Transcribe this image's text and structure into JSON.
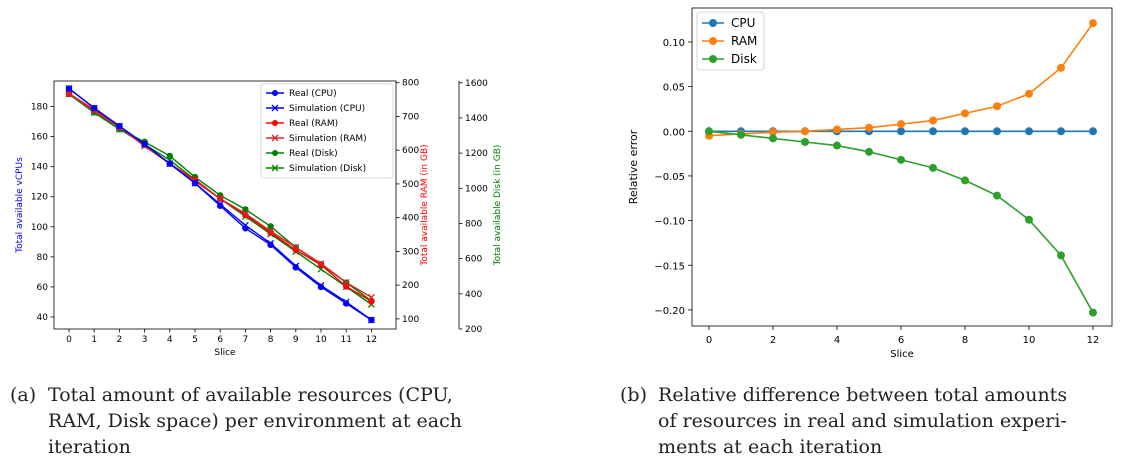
{
  "chart_data": [
    {
      "type": "line",
      "xlabel": "Slice",
      "ylabels": [
        "Total available vCPUs",
        "Total available RAM (in GB)",
        "Total available Disk (in GB)"
      ],
      "x": [
        0,
        1,
        2,
        3,
        4,
        5,
        6,
        7,
        8,
        9,
        10,
        11,
        12
      ],
      "y_left_ticks": [
        40,
        60,
        80,
        100,
        120,
        140,
        160,
        180
      ],
      "y_ram_ticks": [
        100,
        200,
        300,
        400,
        500,
        600,
        700,
        800
      ],
      "y_disk_ticks": [
        200,
        400,
        600,
        800,
        1000,
        1200,
        1400,
        1600
      ],
      "ylim_left": [
        32,
        197
      ],
      "ylim_ram": [
        70,
        805
      ],
      "ylim_disk": [
        200,
        1610
      ],
      "legend_position": "upper right",
      "series": [
        {
          "name": "Real (CPU)",
          "axis": "cpu",
          "color": "#0000ff",
          "marker": "o",
          "values": [
            192,
            179,
            167,
            155,
            142,
            129,
            114,
            99,
            88,
            73,
            60,
            49,
            38
          ]
        },
        {
          "name": "Simulation (CPU)",
          "axis": "cpu",
          "color": "#0000ff",
          "marker": "x",
          "values": [
            192,
            179,
            167,
            155,
            142,
            129,
            115,
            101,
            89,
            74,
            61,
            50,
            38
          ]
        },
        {
          "name": "Real (RAM)",
          "axis": "ram",
          "color": "#ff0000",
          "marker": "o",
          "values": [
            768,
            720,
            668,
            616,
            560,
            512,
            456,
            408,
            356,
            304,
            260,
            196,
            152
          ]
        },
        {
          "name": "Simulation (RAM)",
          "axis": "ram",
          "color": "#d62728",
          "marker": "x",
          "values": [
            768,
            716,
            668,
            612,
            560,
            508,
            456,
            412,
            360,
            312,
            264,
            208,
            164
          ]
        },
        {
          "name": "Real (Disk)",
          "axis": "disk",
          "color": "#008000",
          "marker": "o",
          "values": [
            1536,
            1432,
            1336,
            1264,
            1184,
            1064,
            960,
            880,
            784,
            664,
            568,
            464,
            360
          ]
        },
        {
          "name": "Simulation (Disk)",
          "axis": "disk",
          "color": "#008000",
          "marker": "x",
          "values": [
            1536,
            1430,
            1336,
            1250,
            1160,
            1050,
            940,
            840,
            740,
            640,
            540,
            440,
            340
          ]
        }
      ]
    },
    {
      "type": "line",
      "xlabel": "Slice",
      "ylabel": "Relative error",
      "x": [
        0,
        1,
        2,
        3,
        4,
        5,
        6,
        7,
        8,
        9,
        10,
        11,
        12
      ],
      "x_ticks": [
        0,
        2,
        4,
        6,
        8,
        10,
        12
      ],
      "y_ticks": [
        -0.2,
        -0.15,
        -0.1,
        -0.05,
        0.0,
        0.05,
        0.1
      ],
      "y_tick_labels": [
        "−0.20",
        "−0.15",
        "−0.10",
        "−0.05",
        "0.00",
        "0.05",
        "0.10"
      ],
      "ylim": [
        -0.218,
        0.138
      ],
      "legend_position": "upper left",
      "series": [
        {
          "name": "CPU",
          "color": "#1f77b4",
          "values": [
            0,
            0,
            0,
            0,
            0,
            0,
            0,
            0,
            0,
            0,
            0,
            0,
            0
          ]
        },
        {
          "name": "RAM",
          "color": "#ff7f0e",
          "values": [
            -0.005,
            -0.003,
            -0.001,
            0.0,
            0.002,
            0.004,
            0.008,
            0.012,
            0.02,
            0.028,
            0.042,
            0.071,
            0.121
          ]
        },
        {
          "name": "Disk",
          "color": "#2ca02c",
          "values": [
            0.0,
            -0.004,
            -0.008,
            -0.012,
            -0.016,
            -0.023,
            -0.032,
            -0.041,
            -0.055,
            -0.072,
            -0.099,
            -0.139,
            -0.203
          ]
        }
      ]
    }
  ],
  "captions": {
    "a_label": "(a)",
    "a_text": [
      "Total amount of available resources (CPU,",
      "RAM, Disk space) per environment at each",
      "iteration"
    ],
    "b_label": "(b)",
    "b_text": [
      "Relative difference between total amounts",
      "of resources in real and simulation experi-",
      "ments at each iteration"
    ]
  }
}
